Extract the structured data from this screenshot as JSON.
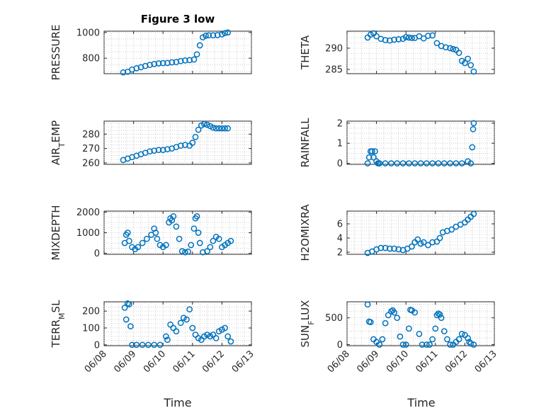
{
  "figure": {
    "title": "Figure 3 low"
  },
  "chart_data": [
    {
      "type": "scatter",
      "title": "Figure 3 low",
      "ylabel": "PRESSURE",
      "ylim": [
        680,
        1010
      ],
      "yticks": [
        800,
        1000
      ],
      "xlim": [
        "06/08",
        "06/13"
      ],
      "xtick_labels": [
        "06/08",
        "06/09",
        "06/10",
        "06/11",
        "06/12",
        "06/13"
      ],
      "grid": true,
      "color": "#0072BD",
      "x": [
        8.65,
        8.8,
        8.95,
        9.1,
        9.25,
        9.4,
        9.55,
        9.7,
        9.85,
        10.0,
        10.15,
        10.3,
        10.45,
        10.6,
        10.75,
        10.9,
        11.05,
        11.15,
        11.25,
        11.35,
        11.45,
        11.55,
        11.7,
        11.85,
        12.0,
        12.1,
        12.2
      ],
      "y": [
        690,
        695,
        712,
        722,
        730,
        740,
        748,
        755,
        760,
        762,
        763,
        768,
        770,
        778,
        783,
        785,
        790,
        830,
        900,
        962,
        975,
        978,
        978,
        980,
        985,
        995,
        1000
      ]
    },
    {
      "type": "scatter",
      "ylabel": "THETA",
      "ylim": [
        284,
        294
      ],
      "yticks": [
        285,
        290
      ],
      "xlim": [
        "06/08",
        "06/13"
      ],
      "xtick_labels": [
        "06/08",
        "06/09",
        "06/10",
        "06/11",
        "06/12",
        "06/13"
      ],
      "grid": true,
      "color": "#0072BD",
      "x": [
        8.7,
        8.8,
        8.9,
        9.0,
        9.15,
        9.3,
        9.45,
        9.6,
        9.75,
        9.9,
        10.0,
        10.1,
        10.2,
        10.3,
        10.45,
        10.6,
        10.75,
        10.9,
        11.05,
        11.2,
        11.35,
        11.5,
        11.6,
        11.7,
        11.8,
        11.9,
        12.0,
        12.1,
        12.2,
        12.3
      ],
      "y": [
        292.5,
        293.2,
        293.5,
        292.8,
        292.2,
        291.9,
        291.8,
        292.0,
        292.1,
        292.2,
        292.6,
        292.5,
        292.4,
        292.4,
        292.8,
        292.3,
        292.9,
        293.0,
        291.2,
        290.5,
        290.2,
        290.0,
        289.8,
        289.6,
        288.9,
        287.0,
        286.5,
        287.5,
        286.0,
        284.5
      ]
    },
    {
      "type": "scatter",
      "ylabel": "AIR_TEMP",
      "ylim": [
        259,
        289
      ],
      "yticks": [
        260,
        270,
        280
      ],
      "xlim": [
        "06/08",
        "06/13"
      ],
      "xtick_labels": [
        "06/08",
        "06/09",
        "06/10",
        "06/11",
        "06/12",
        "06/13"
      ],
      "grid": true,
      "color": "#0072BD",
      "x": [
        8.65,
        8.8,
        8.95,
        9.1,
        9.25,
        9.4,
        9.55,
        9.7,
        9.85,
        10.0,
        10.15,
        10.3,
        10.45,
        10.6,
        10.75,
        10.9,
        11.0,
        11.1,
        11.2,
        11.3,
        11.4,
        11.5,
        11.6,
        11.7,
        11.8,
        11.9,
        12.0,
        12.1,
        12.2
      ],
      "y": [
        262,
        263,
        264,
        265,
        266,
        267,
        268,
        268.5,
        269,
        269,
        269.5,
        270,
        271,
        272,
        272.5,
        272,
        274,
        278,
        283,
        286,
        287,
        286.5,
        285.5,
        284.5,
        284,
        284,
        284,
        284,
        284
      ]
    },
    {
      "type": "scatter",
      "ylabel": "RAINFALL",
      "ylim": [
        -0.05,
        2.1
      ],
      "yticks": [
        0,
        1,
        2
      ],
      "xlim": [
        "06/08",
        "06/13"
      ],
      "xtick_labels": [
        "06/08",
        "06/09",
        "06/10",
        "06/11",
        "06/12",
        "06/13"
      ],
      "grid": true,
      "color": "#0072BD",
      "x": [
        8.7,
        8.75,
        8.8,
        8.85,
        8.9,
        8.95,
        9.0,
        9.05,
        9.1,
        9.3,
        9.5,
        9.7,
        9.9,
        10.1,
        10.3,
        10.5,
        10.7,
        10.9,
        11.1,
        11.3,
        11.5,
        11.7,
        11.9,
        12.1,
        12.2,
        12.25,
        12.28,
        12.3
      ],
      "y": [
        0.0,
        0.3,
        0.6,
        0.6,
        0.3,
        0.6,
        0.1,
        0.0,
        0.0,
        0.0,
        0.0,
        0.0,
        0.0,
        0.0,
        0.0,
        0.0,
        0.0,
        0.0,
        0.0,
        0.0,
        0.0,
        0.0,
        0.0,
        0.1,
        0.0,
        0.8,
        1.7,
        2.0
      ]
    },
    {
      "type": "scatter",
      "ylabel": "MIXDEPTH",
      "ylim": [
        -50,
        2050
      ],
      "yticks": [
        0,
        1000,
        2000
      ],
      "xlim": [
        "06/08",
        "06/13"
      ],
      "xtick_labels": [
        "06/08",
        "06/09",
        "06/10",
        "06/11",
        "06/12",
        "06/13"
      ],
      "grid": true,
      "color": "#0072BD",
      "x": [
        8.7,
        8.75,
        8.8,
        8.85,
        8.95,
        9.05,
        9.15,
        9.3,
        9.45,
        9.6,
        9.7,
        9.75,
        9.8,
        9.9,
        10.0,
        10.1,
        10.2,
        10.25,
        10.3,
        10.35,
        10.45,
        10.55,
        10.65,
        10.75,
        10.85,
        10.95,
        11.05,
        11.1,
        11.15,
        11.2,
        11.25,
        11.35,
        11.5,
        11.6,
        11.7,
        11.8,
        11.9,
        12.0,
        12.1,
        12.2,
        12.3
      ],
      "y": [
        500,
        900,
        1000,
        600,
        300,
        200,
        300,
        500,
        700,
        900,
        1200,
        1000,
        700,
        400,
        300,
        400,
        1500,
        1700,
        1600,
        1800,
        1300,
        700,
        100,
        50,
        80,
        400,
        1200,
        1700,
        1800,
        1000,
        500,
        50,
        100,
        300,
        600,
        800,
        700,
        300,
        400,
        500,
        600
      ]
    },
    {
      "type": "scatter",
      "ylabel": "H2OMIXRA",
      "ylim": [
        1.7,
        7.8
      ],
      "yticks": [
        2,
        4,
        6
      ],
      "xlim": [
        "06/08",
        "06/13"
      ],
      "xtick_labels": [
        "06/08",
        "06/09",
        "06/10",
        "06/11",
        "06/12",
        "06/13"
      ],
      "grid": true,
      "color": "#0072BD",
      "x": [
        8.7,
        8.85,
        9.0,
        9.15,
        9.3,
        9.45,
        9.6,
        9.75,
        9.9,
        10.05,
        10.2,
        10.3,
        10.4,
        10.5,
        10.6,
        10.75,
        10.9,
        11.05,
        11.15,
        11.25,
        11.4,
        11.55,
        11.7,
        11.85,
        12.0,
        12.1,
        12.2,
        12.3
      ],
      "y": [
        1.9,
        2.1,
        2.4,
        2.6,
        2.6,
        2.5,
        2.5,
        2.4,
        2.3,
        2.5,
        2.8,
        3.4,
        3.8,
        3.2,
        3.4,
        3.0,
        3.4,
        3.5,
        4.0,
        4.8,
        5.0,
        5.2,
        5.6,
        5.9,
        6.2,
        6.6,
        7.0,
        7.4
      ]
    },
    {
      "type": "scatter",
      "ylabel": "TERR_MSL",
      "ylim": [
        -5,
        255
      ],
      "yticks": [
        0,
        100,
        200
      ],
      "xlim": [
        "06/08",
        "06/13"
      ],
      "xtick_labels": [
        "06/08",
        "06/09",
        "06/10",
        "06/11",
        "06/12",
        "06/13"
      ],
      "grid": true,
      "color": "#0072BD",
      "x": [
        8.7,
        8.75,
        8.8,
        8.85,
        8.9,
        8.95,
        9.1,
        9.3,
        9.5,
        9.7,
        9.9,
        10.1,
        10.15,
        10.25,
        10.35,
        10.45,
        10.6,
        10.7,
        10.8,
        10.9,
        11.0,
        11.1,
        11.2,
        11.3,
        11.4,
        11.5,
        11.6,
        11.7,
        11.8,
        11.9,
        12.0,
        12.1,
        12.2,
        12.3
      ],
      "y": [
        220,
        150,
        245,
        240,
        110,
        0,
        0,
        0,
        0,
        0,
        0,
        50,
        30,
        120,
        100,
        80,
        130,
        160,
        150,
        210,
        100,
        60,
        40,
        30,
        50,
        60,
        50,
        60,
        40,
        80,
        90,
        100,
        50,
        20
      ]
    },
    {
      "type": "scatter",
      "ylabel": "SUN_FLUX",
      "ylim": [
        -20,
        800
      ],
      "yticks": [
        0,
        500
      ],
      "xlim": [
        "06/08",
        "06/13"
      ],
      "xtick_labels": [
        "06/08",
        "06/09",
        "06/10",
        "06/11",
        "06/12",
        "06/13"
      ],
      "grid": true,
      "color": "#0072BD",
      "x": [
        8.7,
        8.75,
        8.8,
        8.9,
        9.0,
        9.1,
        9.2,
        9.3,
        9.4,
        9.5,
        9.55,
        9.6,
        9.7,
        9.8,
        9.9,
        10.0,
        10.1,
        10.15,
        10.2,
        10.3,
        10.45,
        10.55,
        10.7,
        10.8,
        10.9,
        11.0,
        11.05,
        11.1,
        11.15,
        11.2,
        11.3,
        11.4,
        11.5,
        11.6,
        11.7,
        11.8,
        11.9,
        12.0,
        12.1,
        12.15,
        12.2,
        12.3
      ],
      "y": [
        750,
        430,
        420,
        100,
        50,
        0,
        100,
        400,
        550,
        620,
        640,
        600,
        500,
        150,
        0,
        0,
        300,
        650,
        640,
        600,
        200,
        0,
        0,
        0,
        100,
        300,
        550,
        580,
        560,
        500,
        250,
        100,
        0,
        0,
        50,
        100,
        200,
        180,
        120,
        50,
        20,
        0
      ]
    }
  ],
  "x_axis_label": "Time"
}
